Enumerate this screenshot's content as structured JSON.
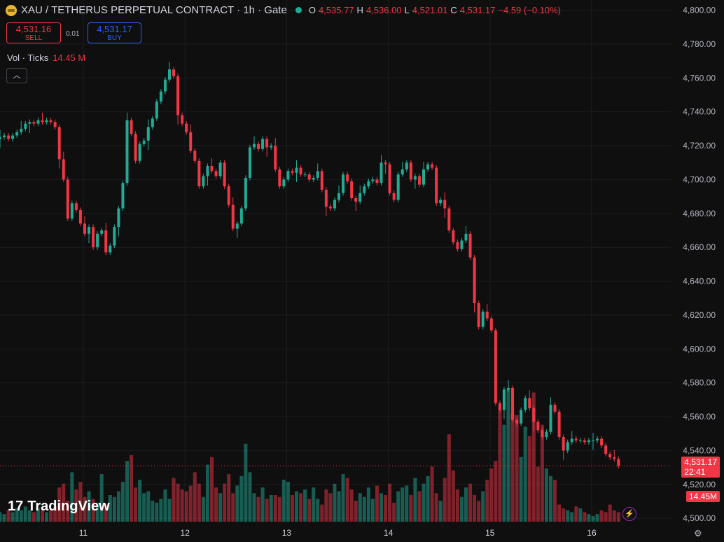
{
  "header": {
    "symbol": "XAU / TETHERUS PERPETUAL CONTRACT · 1h · Gate",
    "o_label": "O",
    "o_value": "4,535.77",
    "h_label": "H",
    "h_value": "4,536.00",
    "l_label": "L",
    "l_value": "4,521.01",
    "c_label": "C",
    "c_value": "4,531.17",
    "change": "−4.59 (−0.10%)"
  },
  "trade": {
    "sell_price": "4,531.16",
    "sell_label": "SELL",
    "spread": "0.01",
    "buy_price": "4,531.17",
    "buy_label": "BUY"
  },
  "volume": {
    "label": "Vol · Ticks",
    "value": "14.45 M"
  },
  "price_tag": {
    "price": "4,531.17",
    "countdown": "22:41"
  },
  "volume_tag": "14.45M",
  "logo": "TradingView",
  "icons": [
    "chevron-up-icon",
    "lightning-icon",
    "gear-icon"
  ],
  "colors": {
    "up": "#22ab94",
    "down": "#f23645",
    "background": "#0f0f10"
  },
  "chart_data": {
    "type": "candlestick",
    "y_ticks": [
      "4,800.00",
      "4,780.00",
      "4,760.00",
      "4,740.00",
      "4,720.00",
      "4,700.00",
      "4,680.00",
      "4,660.00",
      "4,640.00",
      "4,620.00",
      "4,600.00",
      "4,580.00",
      "4,560.00",
      "4,540.00",
      "4,520.00",
      "4,500.00"
    ],
    "x_ticks": [
      "11",
      "12",
      "13",
      "14",
      "15",
      "16"
    ],
    "ylim": [
      4498,
      4806
    ],
    "x_tick_index": [
      20,
      44,
      68,
      92,
      116,
      140
    ],
    "closes": [
      4725,
      4726,
      4724,
      4726,
      4728,
      4730,
      4733,
      4734,
      4733,
      4735,
      4734,
      4735,
      4734,
      4731,
      4712,
      4700,
      4677,
      4686,
      4682,
      4674,
      4668,
      4672,
      4660,
      4668,
      4670,
      4657,
      4661,
      4672,
      4683,
      4698,
      4735,
      4727,
      4711,
      4721,
      4723,
      4731,
      4736,
      4746,
      4752,
      4759,
      4765,
      4761,
      4738,
      4733,
      4728,
      4717,
      4711,
      4696,
      4702,
      4708,
      4705,
      4702,
      4710,
      4696,
      4685,
      4671,
      4674,
      4683,
      4701,
      4719,
      4721,
      4718,
      4724,
      4719,
      4720,
      4706,
      4696,
      4700,
      4705,
      4704,
      4707,
      4703,
      4703,
      4700,
      4701,
      4705,
      4694,
      4684,
      4683,
      4688,
      4692,
      4703,
      4699,
      4689,
      4687,
      4692,
      4696,
      4699,
      4700,
      4698,
      4710,
      4709,
      4692,
      4688,
      4703,
      4706,
      4710,
      4700,
      4702,
      4697,
      4706,
      4709,
      4707,
      4686,
      4688,
      4683,
      4670,
      4663,
      4659,
      4664,
      4668,
      4654,
      4627,
      4613,
      4622,
      4618,
      4611,
      4568,
      4564,
      4576,
      4577,
      4558,
      4556,
      4564,
      4571,
      4565,
      4557,
      4552,
      4548,
      4551,
      4567,
      4563,
      4548,
      4540,
      4545,
      4547,
      4546,
      4546,
      4545,
      4546,
      4546,
      4547,
      4543,
      4538,
      4536,
      4535,
      4531
    ],
    "volumes": [
      5,
      4,
      6,
      5,
      7,
      6,
      8,
      6,
      5,
      7,
      6,
      5,
      6,
      8,
      18,
      20,
      11,
      26,
      17,
      21,
      13,
      16,
      12,
      10,
      25,
      9,
      14,
      13,
      16,
      21,
      32,
      35,
      18,
      22,
      15,
      16,
      11,
      10,
      12,
      17,
      12,
      23,
      20,
      17,
      16,
      19,
      26,
      20,
      13,
      30,
      34,
      18,
      15,
      20,
      25,
      15,
      19,
      24,
      41,
      26,
      15,
      13,
      18,
      12,
      14,
      14,
      13,
      22,
      21,
      14,
      16,
      15,
      17,
      12,
      18,
      12,
      9,
      17,
      15,
      20,
      16,
      25,
      23,
      17,
      11,
      15,
      13,
      18,
      12,
      19,
      15,
      14,
      20,
      10,
      16,
      18,
      19,
      14,
      23,
      16,
      20,
      24,
      29,
      15,
      11,
      23,
      46,
      27,
      17,
      13,
      18,
      20,
      14,
      11,
      16,
      22,
      28,
      32,
      60,
      51,
      70,
      57,
      56,
      34,
      50,
      45,
      68,
      29,
      51,
      28,
      24,
      22,
      9,
      7,
      6,
      5,
      8,
      7,
      5,
      4,
      3,
      4,
      6,
      5,
      9,
      6,
      5
    ]
  }
}
